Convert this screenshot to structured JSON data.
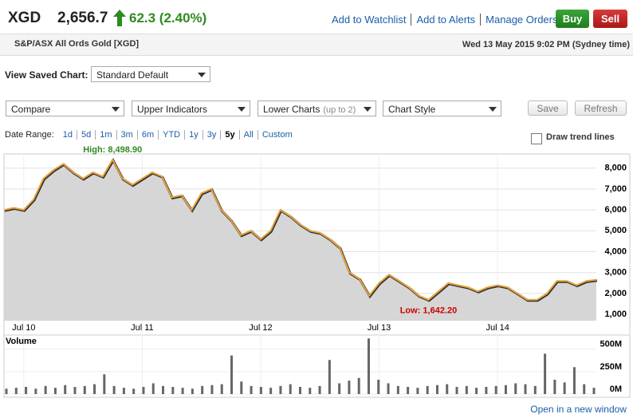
{
  "header": {
    "symbol": "XGD",
    "price": "2,656.7",
    "change": "62.3 (2.40%)",
    "links": [
      "Add to Watchlist",
      "Add to Alerts",
      "Manage Orders"
    ],
    "buy": "Buy",
    "sell": "Sell",
    "description": "S&P/ASX All Ords Gold [XGD]",
    "timestamp": "Wed 13 May 2015 9:02 PM (Sydney time)"
  },
  "controls": {
    "saved_chart_label": "View Saved Chart:",
    "saved_chart": "Standard Default",
    "dropdowns": [
      {
        "label": "Compare"
      },
      {
        "label": "Upper Indicators"
      },
      {
        "label": "Lower Charts",
        "hint": "(up to 2)"
      },
      {
        "label": "Chart Style"
      }
    ],
    "buttons": [
      "Save",
      "Refresh"
    ],
    "date_range_label": "Date Range:",
    "ranges": [
      "1d",
      "5d",
      "1m",
      "3m",
      "6m",
      "YTD",
      "1y",
      "3y",
      "5y",
      "All",
      "Custom"
    ],
    "selected_range": 8,
    "trend_lines": "Draw trend lines"
  },
  "chart_data": [
    {
      "type": "line",
      "x": [
        "2010-05",
        "2010-06",
        "2010-07",
        "2010-08",
        "2010-09",
        "2010-10",
        "2010-11",
        "2010-12",
        "2011-01",
        "2011-02",
        "2011-03",
        "2011-04",
        "2011-05",
        "2011-06",
        "2011-07",
        "2011-08",
        "2011-09",
        "2011-10",
        "2011-11",
        "2011-12",
        "2012-01",
        "2012-02",
        "2012-03",
        "2012-04",
        "2012-05",
        "2012-06",
        "2012-07",
        "2012-08",
        "2012-09",
        "2012-10",
        "2012-11",
        "2012-12",
        "2013-01",
        "2013-02",
        "2013-03",
        "2013-04",
        "2013-05",
        "2013-06",
        "2013-07",
        "2013-08",
        "2013-09",
        "2013-10",
        "2013-11",
        "2013-12",
        "2014-01",
        "2014-02",
        "2014-03",
        "2014-04",
        "2014-05",
        "2014-06",
        "2014-07",
        "2014-08",
        "2014-09",
        "2014-10",
        "2014-11",
        "2014-12",
        "2015-01",
        "2015-02",
        "2015-03",
        "2015-04",
        "2015-05"
      ],
      "series": [
        {
          "color": "#e8a33a",
          "values": [
            6000,
            6100,
            6000,
            6500,
            7500,
            7900,
            8200,
            7800,
            7500,
            7800,
            7600,
            8400,
            7500,
            7200,
            7500,
            7800,
            7600,
            6600,
            6700,
            6000,
            6800,
            7000,
            6000,
            5500,
            4800,
            5000,
            4600,
            5000,
            6000,
            5700,
            5300,
            5000,
            4900,
            4600,
            4200,
            3000,
            2700,
            1900,
            2500,
            2900,
            2600,
            2300,
            1900,
            1700,
            2100,
            2500,
            2400,
            2300,
            2100,
            2300,
            2400,
            2300,
            2000,
            1700,
            1700,
            2000,
            2600,
            2600,
            2400,
            2600,
            2656.7
          ]
        }
      ],
      "ylim": [
        700,
        8600
      ],
      "yticks": [
        {
          "value": 1000,
          "label": "1,000"
        },
        {
          "value": 2000,
          "label": "2,000"
        },
        {
          "value": 3000,
          "label": "3,000"
        },
        {
          "value": 4000,
          "label": "4,000"
        },
        {
          "value": 5000,
          "label": "5,000"
        },
        {
          "value": 6000,
          "label": "6,000"
        },
        {
          "value": 7000,
          "label": "7,000"
        },
        {
          "value": 8000,
          "label": "8,000"
        }
      ],
      "xticks": [
        {
          "value": "2010-07",
          "label": "Jul 10"
        },
        {
          "value": "2011-07",
          "label": "Jul 11"
        },
        {
          "value": "2012-07",
          "label": "Jul 12"
        },
        {
          "value": "2013-07",
          "label": "Jul 13"
        },
        {
          "value": "2014-07",
          "label": "Jul 14"
        }
      ],
      "annotations": [
        {
          "text": "High: 8,498.90",
          "color": "#2e8b1e"
        },
        {
          "text": "Low: 1,642.20",
          "color": "#cc0000"
        }
      ],
      "grid": true
    },
    {
      "type": "bar",
      "title": "Volume",
      "color": "#666666",
      "values": [
        60,
        70,
        80,
        60,
        90,
        70,
        100,
        80,
        90,
        110,
        220,
        90,
        70,
        60,
        80,
        120,
        90,
        80,
        70,
        60,
        90,
        100,
        110,
        430,
        140,
        90,
        80,
        70,
        90,
        110,
        80,
        70,
        90,
        380,
        120,
        150,
        180,
        620,
        160,
        120,
        90,
        80,
        70,
        90,
        100,
        110,
        80,
        90,
        70,
        80,
        90,
        100,
        120,
        110,
        90,
        450,
        160,
        130,
        300,
        110,
        70
      ],
      "ylim": [
        0,
        640
      ],
      "yticks": [
        {
          "value": 0,
          "label": "0M"
        },
        {
          "value": 250,
          "label": "250M"
        },
        {
          "value": 500,
          "label": "500M"
        }
      ]
    }
  ],
  "footer": {
    "link": "Open in a new window"
  }
}
